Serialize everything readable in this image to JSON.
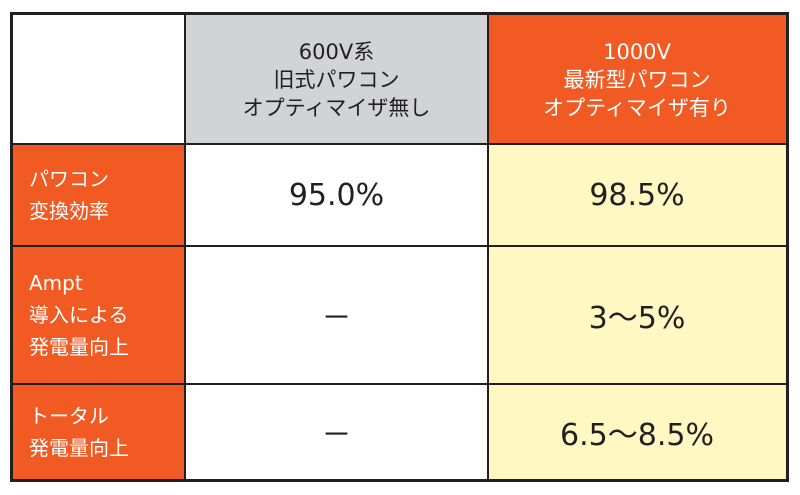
{
  "table": {
    "columns": [
      {
        "label": "600V系\n旧式パワコン\nオプティマイザ無し"
      },
      {
        "label": "1000V\n最新型パワコン\nオプティマイザ有り"
      }
    ],
    "rows": [
      {
        "label": "パワコン\n変換効率",
        "values": [
          "95.0%",
          "98.5%"
        ]
      },
      {
        "label": "Ampt\n導入による\n発電量向上",
        "values": [
          "－",
          "3〜5%"
        ]
      },
      {
        "label": "トータル\n発電量向上",
        "values": [
          "－",
          "6.5〜8.5%"
        ]
      }
    ]
  },
  "colors": {
    "accent_orange": "#f15a22",
    "header_gray": "#d1d3d4",
    "highlight_yellow": "#fff8c2",
    "border": "#231f20"
  }
}
